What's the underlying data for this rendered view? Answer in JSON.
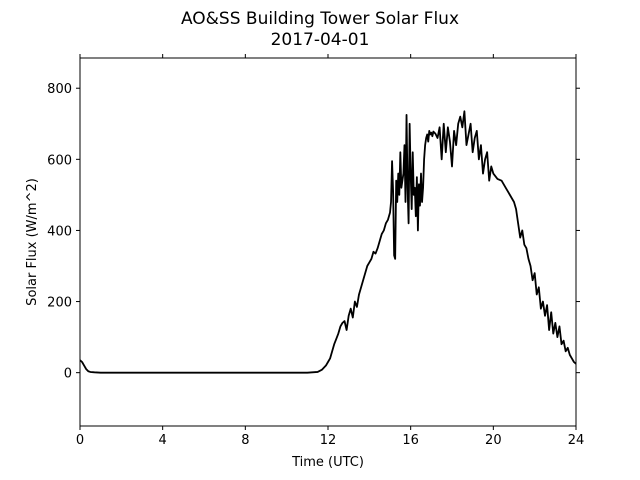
{
  "chart_data": {
    "type": "line",
    "title": "AO&SS Building Tower Solar Flux",
    "subtitle": "2017-04-01",
    "xlabel": "Time (UTC)",
    "ylabel": "Solar Flux (W/m^2)",
    "xlim": [
      0,
      24
    ],
    "ylim": [
      -150,
      885
    ],
    "xticks": [
      0,
      4,
      8,
      12,
      16,
      20,
      24
    ],
    "yticks": [
      0,
      200,
      400,
      600,
      800
    ],
    "grid": false,
    "line_color": "#000000",
    "series": [
      {
        "x": [
          0,
          0.1,
          0.2,
          0.3,
          0.4,
          0.5,
          0.7,
          1.0,
          2,
          3,
          4,
          5,
          6,
          7,
          8,
          9,
          10,
          11,
          11.5,
          11.7,
          11.9,
          12.0,
          12.1,
          12.2,
          12.3,
          12.4,
          12.5,
          12.6,
          12.7,
          12.8,
          12.9,
          13.0,
          13.1,
          13.2,
          13.3,
          13.4,
          13.5,
          13.6,
          13.7,
          13.8,
          13.9,
          14.0,
          14.1,
          14.2,
          14.3,
          14.4,
          14.5,
          14.6,
          14.7,
          14.8,
          14.9,
          15.0,
          15.05,
          15.1,
          15.15,
          15.2,
          15.25,
          15.3,
          15.35,
          15.4,
          15.45,
          15.5,
          15.55,
          15.6,
          15.65,
          15.7,
          15.75,
          15.8,
          15.85,
          15.9,
          15.95,
          16.0,
          16.05,
          16.1,
          16.15,
          16.2,
          16.25,
          16.3,
          16.35,
          16.4,
          16.45,
          16.5,
          16.55,
          16.6,
          16.65,
          16.7,
          16.75,
          16.8,
          16.85,
          16.9,
          16.95,
          17.0,
          17.05,
          17.1,
          17.2,
          17.3,
          17.4,
          17.5,
          17.6,
          17.7,
          17.8,
          17.9,
          18.0,
          18.1,
          18.2,
          18.3,
          18.4,
          18.5,
          18.6,
          18.7,
          18.8,
          18.9,
          19.0,
          19.1,
          19.2,
          19.3,
          19.4,
          19.5,
          19.6,
          19.7,
          19.8,
          19.9,
          20.0,
          20.2,
          20.4,
          20.6,
          20.8,
          21.0,
          21.1,
          21.2,
          21.3,
          21.4,
          21.5,
          21.6,
          21.7,
          21.8,
          21.9,
          22.0,
          22.1,
          22.2,
          22.3,
          22.4,
          22.5,
          22.6,
          22.7,
          22.8,
          22.9,
          23.0,
          23.1,
          23.2,
          23.3,
          23.4,
          23.5,
          23.6,
          23.7,
          23.8,
          23.9,
          24.0
        ],
        "y": [
          35,
          30,
          20,
          10,
          4,
          2,
          1,
          0,
          0,
          0,
          0,
          0,
          0,
          0,
          0,
          0,
          0,
          0,
          2,
          8,
          20,
          30,
          40,
          60,
          80,
          95,
          110,
          130,
          140,
          145,
          120,
          160,
          180,
          155,
          200,
          185,
          220,
          240,
          260,
          280,
          300,
          310,
          320,
          340,
          335,
          350,
          370,
          390,
          400,
          420,
          430,
          450,
          480,
          595,
          510,
          330,
          320,
          540,
          480,
          560,
          500,
          620,
          520,
          540,
          560,
          640,
          480,
          725,
          520,
          420,
          700,
          560,
          460,
          620,
          500,
          520,
          440,
          550,
          400,
          530,
          470,
          560,
          480,
          520,
          600,
          640,
          660,
          670,
          650,
          680,
          670,
          675,
          665,
          678,
          672,
          660,
          690,
          600,
          700,
          620,
          690,
          650,
          580,
          680,
          640,
          700,
          720,
          690,
          735,
          640,
          670,
          700,
          620,
          660,
          680,
          600,
          640,
          560,
          600,
          620,
          540,
          580,
          560,
          545,
          540,
          520,
          500,
          480,
          460,
          420,
          380,
          400,
          360,
          350,
          320,
          300,
          260,
          280,
          220,
          240,
          180,
          200,
          160,
          190,
          120,
          170,
          110,
          140,
          100,
          130,
          80,
          90,
          60,
          70,
          50,
          40,
          30,
          25
        ]
      }
    ]
  }
}
